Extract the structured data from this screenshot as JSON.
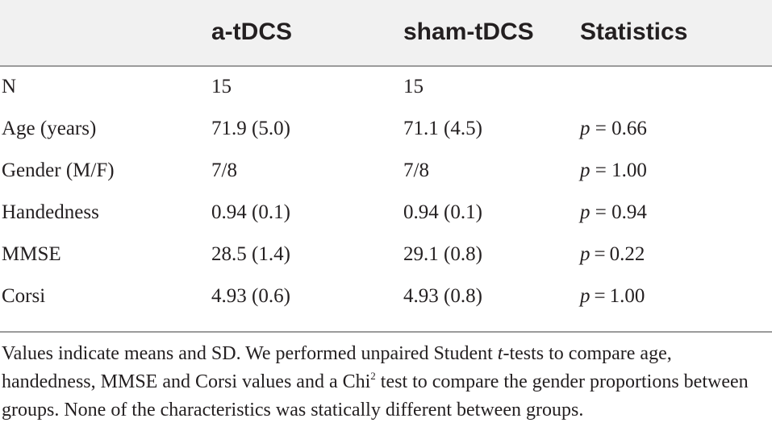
{
  "table": {
    "headers": [
      "",
      "a-tDCS",
      "sham-tDCS",
      "Statistics"
    ],
    "rows": [
      {
        "label": "N",
        "a_tdcs": "15",
        "sham_tdcs": "15",
        "p_symbol": "",
        "p_value": ""
      },
      {
        "label": "Age (years)",
        "a_tdcs": "71.9 (5.0)",
        "sham_tdcs": "71.1 (4.5)",
        "p_symbol": "p",
        "p_value": " = 0.66"
      },
      {
        "label": "Gender (M/F)",
        "a_tdcs": "7/8",
        "sham_tdcs": "7/8",
        "p_symbol": "p",
        "p_value": " = 1.00"
      },
      {
        "label": "Handedness",
        "a_tdcs": "0.94 (0.1)",
        "sham_tdcs": "0.94 (0.1)",
        "p_symbol": "p",
        "p_value": " = 0.94"
      },
      {
        "label": "MMSE",
        "a_tdcs": "28.5 (1.4)",
        "sham_tdcs": "29.1 (0.8)",
        "p_symbol": "p",
        "p_value": " = 0.22"
      },
      {
        "label": "Corsi",
        "a_tdcs": "4.93 (0.6)",
        "sham_tdcs": "4.93 (0.8)",
        "p_symbol": "p",
        "p_value": " = 1.00"
      }
    ]
  },
  "footnote": {
    "part1": "Values indicate means and SD. We performed unpaired Student ",
    "t_symbol": "t",
    "part2": "-tests to compare age, handedness, MMSE and Corsi values and a Chi",
    "superscript": "2",
    "part3": " test to compare the gender proportions between groups. None of the characteristics was statically different between groups."
  },
  "colors": {
    "header_background": "#f1f1f1",
    "rule": "#9b9b9b",
    "text": "#231f20"
  }
}
